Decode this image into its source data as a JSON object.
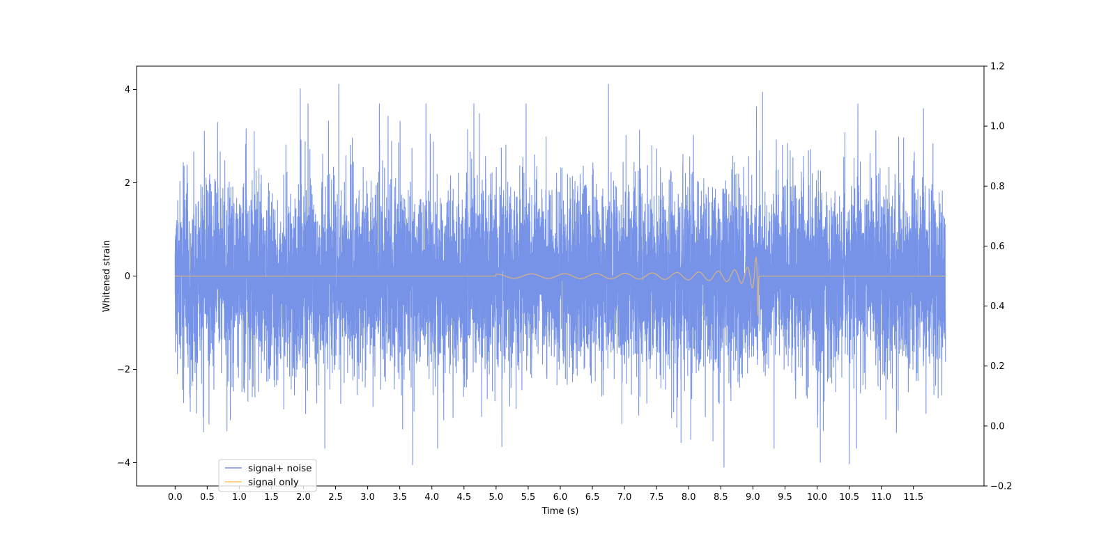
{
  "chart_data": {
    "type": "line",
    "title": "",
    "xlabel": "Time (s)",
    "ylabel": "Whitened strain",
    "xlim": [
      -0.6,
      12.6
    ],
    "ylim": [
      -4.5,
      4.5
    ],
    "y2lim": [
      -0.2,
      1.2
    ],
    "x_ticks": [
      0.0,
      0.5,
      1.0,
      1.5,
      2.0,
      2.5,
      3.0,
      3.5,
      4.0,
      4.5,
      5.0,
      5.5,
      6.0,
      6.5,
      7.0,
      7.5,
      8.0,
      8.5,
      9.0,
      9.5,
      10.0,
      10.5,
      11.0,
      11.5
    ],
    "x_tick_labels": [
      "0.0",
      "0.5",
      "1.0",
      "1.5",
      "2.0",
      "2.5",
      "3.0",
      "3.5",
      "4.0",
      "4.5",
      "5.0",
      "5.5",
      "6.0",
      "6.5",
      "7.0",
      "7.5",
      "8.0",
      "8.5",
      "9.0",
      "9.5",
      "10.0",
      "10.5",
      "11.0",
      "11.5"
    ],
    "y_ticks": [
      -4,
      -2,
      0,
      2,
      4
    ],
    "y_tick_labels": [
      "−4",
      "−2",
      "0",
      "2",
      "4"
    ],
    "y2_ticks": [
      -0.2,
      0.0,
      0.2,
      0.4,
      0.6,
      0.8,
      1.0,
      1.2
    ],
    "y2_tick_labels": [
      "−0.2",
      "0.0",
      "0.2",
      "0.4",
      "0.6",
      "0.8",
      "1.0",
      "1.2"
    ],
    "grid": false,
    "legend_position": "lower-left",
    "series": [
      {
        "name": "signal+ noise",
        "color": "#6f8de6",
        "x_range": [
          0.0,
          12.0
        ],
        "envelope": {
          "typical_abs": 2.0,
          "peak_max": 4.1,
          "peak_min": -4.1
        },
        "notable_peaks": [
          {
            "x": 1.95,
            "y": 4.02
          },
          {
            "x": 2.55,
            "y": 4.12
          },
          {
            "x": 6.75,
            "y": 4.12
          },
          {
            "x": 9.15,
            "y": 3.95
          },
          {
            "x": 3.7,
            "y": -4.05
          },
          {
            "x": 8.55,
            "y": -4.1
          },
          {
            "x": 10.5,
            "y": -4.03
          },
          {
            "x": 10.05,
            "y": -4.0
          }
        ]
      },
      {
        "name": "signal only",
        "color": "#ffbf5a",
        "x_range": [
          0.0,
          12.0
        ],
        "chirp": {
          "start": 5.0,
          "merger": 9.08,
          "peak_amplitude": 0.85
        }
      }
    ]
  }
}
